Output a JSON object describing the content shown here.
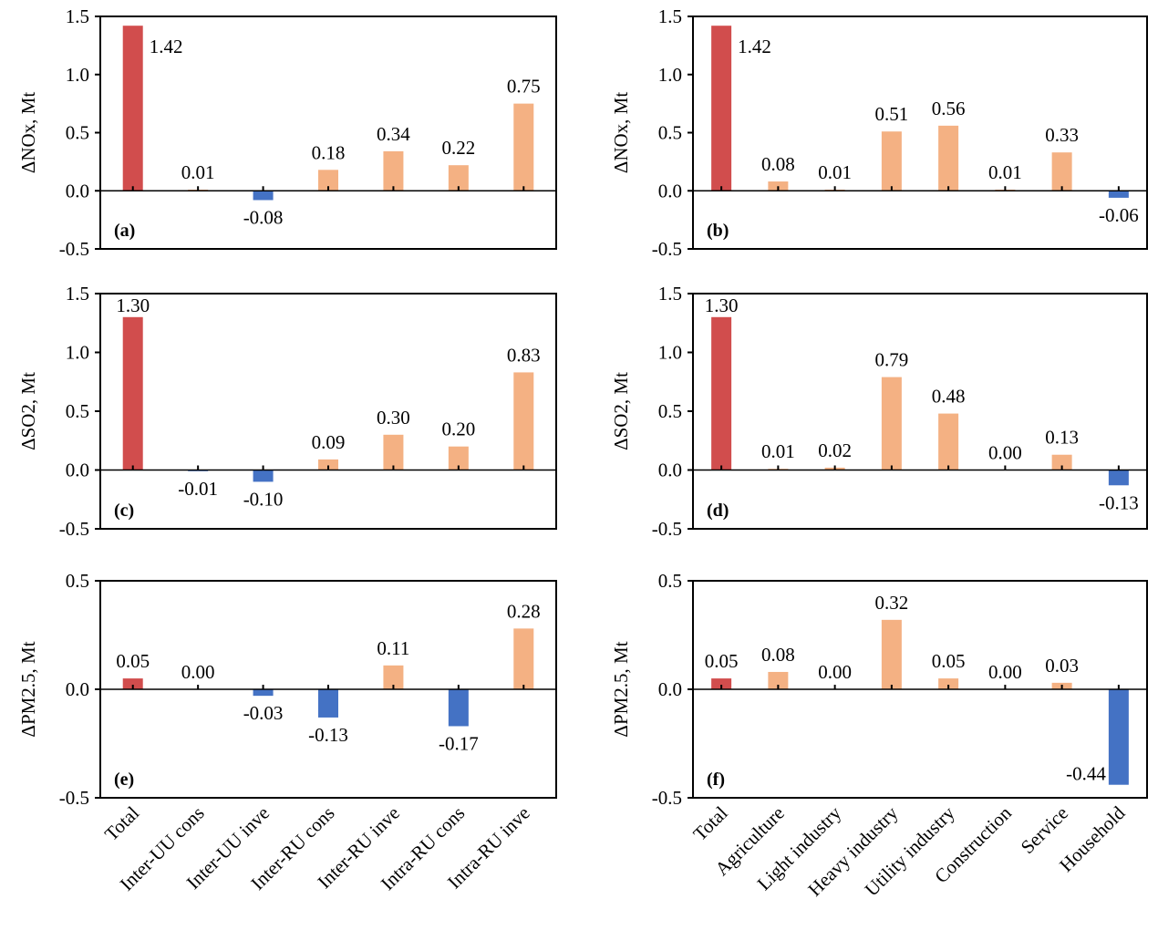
{
  "colors": {
    "total": "#d14d4d",
    "positive": "#f4b183",
    "negative": "#4472c4"
  },
  "chart_data": [
    {
      "type": "bar",
      "panel": "(a)",
      "ylabel": "ΔNOx, Mt",
      "ylim": [
        -0.5,
        1.5
      ],
      "yticks": [
        "1.5",
        "1.0",
        "0.5",
        "0.0",
        "-0.5"
      ],
      "categories": [
        "Total",
        "Inter-UU cons",
        "Inter-UU inve",
        "Inter-RU cons",
        "Inter-RU inve",
        "Intra-RU cons",
        "Intra-RU inve"
      ],
      "values": [
        1.42,
        0.01,
        -0.08,
        0.18,
        0.34,
        0.22,
        0.75
      ],
      "labels": [
        "1.42",
        "0.01",
        "-0.08",
        "0.18",
        "0.34",
        "0.22",
        "0.75"
      ]
    },
    {
      "type": "bar",
      "panel": "(b)",
      "ylabel": "ΔNOx, Mt",
      "ylim": [
        -0.5,
        1.5
      ],
      "yticks": [
        "1.5",
        "1.0",
        "0.5",
        "0.0",
        "-0.5"
      ],
      "categories": [
        "Total",
        "Agriculture",
        "Light industry",
        "Heavy industry",
        "Utility industry",
        "Construction",
        "Service",
        "Household"
      ],
      "values": [
        1.42,
        0.08,
        0.01,
        0.51,
        0.56,
        0.01,
        0.33,
        -0.06
      ],
      "labels": [
        "1.42",
        "0.08",
        "0.01",
        "0.51",
        "0.56",
        "0.01",
        "0.33",
        "-0.06"
      ]
    },
    {
      "type": "bar",
      "panel": "(c)",
      "ylabel": "ΔSO2, Mt",
      "ylim": [
        -0.5,
        1.5
      ],
      "yticks": [
        "1.5",
        "1.0",
        "0.5",
        "0.0",
        "-0.5"
      ],
      "categories": [
        "Total",
        "Inter-UU cons",
        "Inter-UU inve",
        "Inter-RU cons",
        "Inter-RU inve",
        "Intra-RU cons",
        "Intra-RU inve"
      ],
      "values": [
        1.3,
        -0.01,
        -0.1,
        0.09,
        0.3,
        0.2,
        0.83
      ],
      "labels": [
        "1.30",
        "-0.01",
        "-0.10",
        "0.09",
        "0.30",
        "0.20",
        "0.83"
      ]
    },
    {
      "type": "bar",
      "panel": "(d)",
      "ylabel": "ΔSO2, Mt",
      "ylim": [
        -0.5,
        1.5
      ],
      "yticks": [
        "1.5",
        "1.0",
        "0.5",
        "0.0",
        "-0.5"
      ],
      "categories": [
        "Total",
        "Agriculture",
        "Light industry",
        "Heavy industry",
        "Utility industry",
        "Construction",
        "Service",
        "Household"
      ],
      "values": [
        1.3,
        0.01,
        0.02,
        0.79,
        0.48,
        0.0,
        0.13,
        -0.13
      ],
      "labels": [
        "1.30",
        "0.01",
        "0.02",
        "0.79",
        "0.48",
        "0.00",
        "0.13",
        "-0.13"
      ]
    },
    {
      "type": "bar",
      "panel": "(e)",
      "ylabel": "ΔPM2.5, Mt",
      "ylim": [
        -0.5,
        0.5
      ],
      "yticks": [
        "0.5",
        "0.0",
        "-0.5"
      ],
      "categories": [
        "Total",
        "Inter-UU cons",
        "Inter-UU inve",
        "Inter-RU cons",
        "Inter-RU inve",
        "Intra-RU cons",
        "Intra-RU inve"
      ],
      "values": [
        0.05,
        0.0,
        -0.03,
        -0.13,
        0.11,
        -0.17,
        0.28
      ],
      "labels": [
        "0.05",
        "0.00",
        "-0.03",
        "-0.13",
        "0.11",
        "-0.17",
        "0.28"
      ]
    },
    {
      "type": "bar",
      "panel": "(f)",
      "ylabel": "ΔPM2.5, Mt",
      "ylim": [
        -0.5,
        0.5
      ],
      "yticks": [
        "0.5",
        "0.0",
        "-0.5"
      ],
      "categories": [
        "Total",
        "Agriculture",
        "Light industry",
        "Heavy industry",
        "Utility industry",
        "Construction",
        "Service",
        "Household"
      ],
      "values": [
        0.05,
        0.08,
        0.0,
        0.32,
        0.05,
        0.0,
        0.03,
        -0.44
      ],
      "labels": [
        "0.05",
        "0.08",
        "0.00",
        "0.32",
        "0.05",
        "0.00",
        "0.03",
        "-0.44"
      ]
    }
  ]
}
